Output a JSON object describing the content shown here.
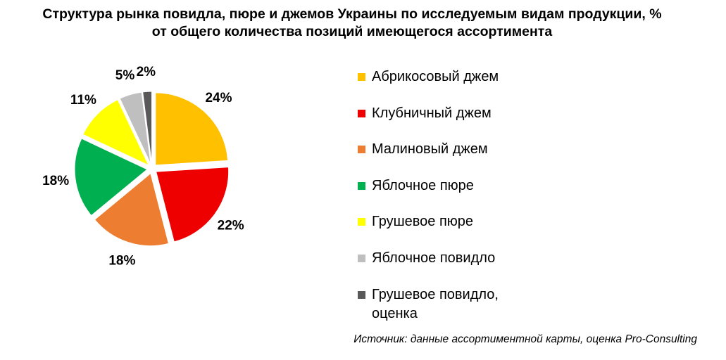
{
  "title_line1": "Структура рынка повидла, пюре и джемов Украины по исследуемым видам продукции, %",
  "title_line2": "от общего количества позиций имеющегося ассортимента",
  "source": "Источник: данные ассортиментной карты, оценка Pro-Consulting",
  "chart_data": {
    "type": "pie",
    "title": "Структура рынка повидла, пюре и джемов Украины по исследуемым видам продукции, % от общего количества позиций имеющегося ассортимента",
    "exploded": true,
    "legend_position": "right",
    "slices": [
      {
        "name": "Абрикосовый джем",
        "value": 24,
        "label": "24%",
        "color": "#FFC000"
      },
      {
        "name": "Клубничный джем",
        "value": 22,
        "label": "22%",
        "color": "#EE0000"
      },
      {
        "name": "Малиновый джем",
        "value": 18,
        "label": "18%",
        "color": "#ED7D31"
      },
      {
        "name": "Яблочное пюре",
        "value": 18,
        "label": "18%",
        "color": "#00B050"
      },
      {
        "name": "Грушевое пюре",
        "value": 11,
        "label": "11%",
        "color": "#FFFF00"
      },
      {
        "name": "Яблочное повидло",
        "value": 5,
        "label": "5%",
        "color": "#BFBFBF"
      },
      {
        "name": "Грушевое повидло,\nоценка",
        "value": 2,
        "label": "2%",
        "color": "#595959"
      }
    ]
  }
}
